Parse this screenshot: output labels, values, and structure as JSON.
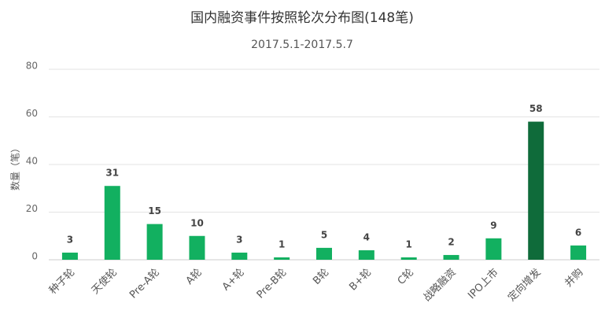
{
  "chart_data": {
    "type": "bar",
    "title": "国内融资事件按照轮次分布图(148笔)",
    "subtitle": "2017.5.1-2017.5.7",
    "y_label": "数量（笔）",
    "categories": [
      "种子轮",
      "天使轮",
      "Pre-A轮",
      "A轮",
      "A+轮",
      "Pre-B轮",
      "B轮",
      "B+轮",
      "C轮",
      "战略融资",
      "IPO上市",
      "定向增发",
      "并购"
    ],
    "values": [
      3,
      31,
      15,
      10,
      3,
      1,
      5,
      4,
      1,
      2,
      9,
      58,
      6
    ],
    "colors": [
      "#12b060",
      "#12b060",
      "#12b060",
      "#12b060",
      "#12b060",
      "#12b060",
      "#12b060",
      "#12b060",
      "#12b060",
      "#12b060",
      "#12b060",
      "#0f6b3a",
      "#12b060"
    ],
    "ylim": [
      0,
      80
    ],
    "yticks": [
      0,
      20,
      40,
      60,
      80
    ],
    "grid": true
  }
}
